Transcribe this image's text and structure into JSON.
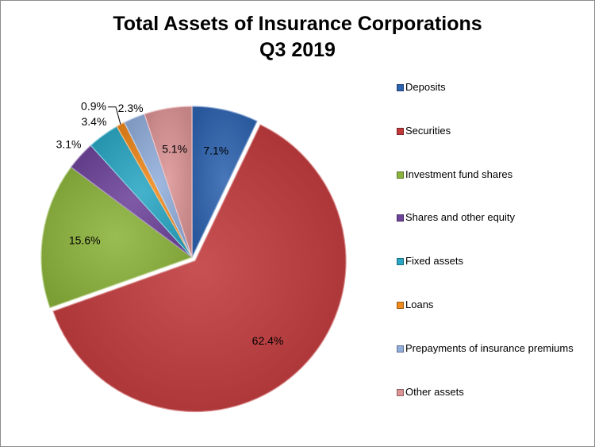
{
  "chart_data": {
    "type": "pie",
    "title_lines": [
      "Total Assets of Insurance Corporations",
      "Q3 2019"
    ],
    "legend_position": "right",
    "slices": [
      {
        "name": "Deposits",
        "value": 7.1,
        "label": "7.1%",
        "color": "#2e64b0"
      },
      {
        "name": "Securities",
        "value": 62.4,
        "label": "62.4%",
        "color": "#c0393b"
      },
      {
        "name": "Investment fund shares",
        "value": 15.6,
        "label": "15.6%",
        "color": "#8cb43c"
      },
      {
        "name": "Shares and other equity",
        "value": 3.1,
        "label": "3.1%",
        "color": "#6e449a"
      },
      {
        "name": "Fixed assets",
        "value": 3.4,
        "label": "3.4%",
        "color": "#2aa7c4"
      },
      {
        "name": "Loans",
        "value": 0.9,
        "label": "0.9%",
        "color": "#f08a1c"
      },
      {
        "name": "Prepayments of insurance premiums",
        "value": 2.3,
        "label": "2.3%",
        "color": "#92aedb"
      },
      {
        "name": "Other assets",
        "value": 5.1,
        "label": "5.1%",
        "color": "#dc9496"
      }
    ]
  }
}
